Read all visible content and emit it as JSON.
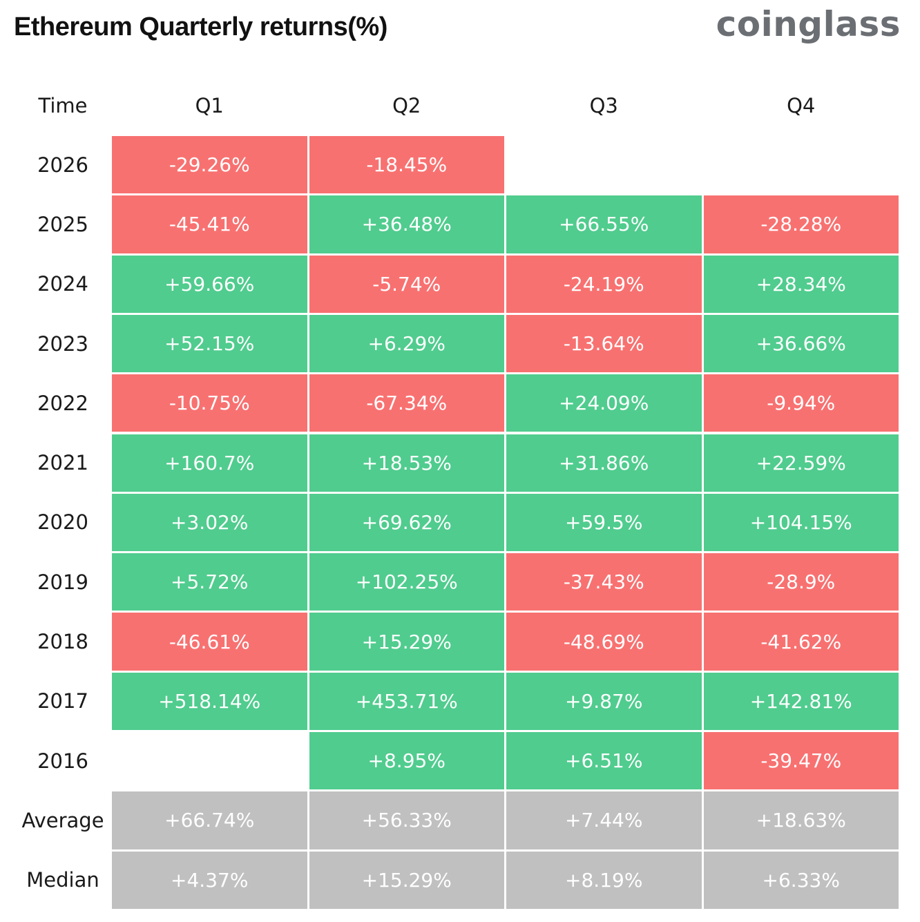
{
  "header": {
    "title": "Ethereum Quarterly returns(%)",
    "brand": "coinglass"
  },
  "colors": {
    "positive": "#50cc8e",
    "negative": "#f87171",
    "summary": "#c0c0c0",
    "cell_text": "#ffffff"
  },
  "chart_data": {
    "type": "table",
    "title": "Ethereum Quarterly returns(%)",
    "columns": [
      "Time",
      "Q1",
      "Q2",
      "Q3",
      "Q4"
    ],
    "rows": [
      {
        "label": "2026",
        "values": [
          "-29.26%",
          "-18.45%",
          "",
          ""
        ]
      },
      {
        "label": "2025",
        "values": [
          "-45.41%",
          "+36.48%",
          "+66.55%",
          "-28.28%"
        ]
      },
      {
        "label": "2024",
        "values": [
          "+59.66%",
          "-5.74%",
          "-24.19%",
          "+28.34%"
        ]
      },
      {
        "label": "2023",
        "values": [
          "+52.15%",
          "+6.29%",
          "-13.64%",
          "+36.66%"
        ]
      },
      {
        "label": "2022",
        "values": [
          "-10.75%",
          "-67.34%",
          "+24.09%",
          "-9.94%"
        ]
      },
      {
        "label": "2021",
        "values": [
          "+160.7%",
          "+18.53%",
          "+31.86%",
          "+22.59%"
        ]
      },
      {
        "label": "2020",
        "values": [
          "+3.02%",
          "+69.62%",
          "+59.5%",
          "+104.15%"
        ]
      },
      {
        "label": "2019",
        "values": [
          "+5.72%",
          "+102.25%",
          "-37.43%",
          "-28.9%"
        ]
      },
      {
        "label": "2018",
        "values": [
          "-46.61%",
          "+15.29%",
          "-48.69%",
          "-41.62%"
        ]
      },
      {
        "label": "2017",
        "values": [
          "+518.14%",
          "+453.71%",
          "+9.87%",
          "+142.81%"
        ]
      },
      {
        "label": "2016",
        "values": [
          "",
          "+8.95%",
          "+6.51%",
          "-39.47%"
        ]
      }
    ],
    "summary_rows": [
      {
        "label": "Average",
        "values": [
          "+66.74%",
          "+56.33%",
          "+7.44%",
          "+18.63%"
        ]
      },
      {
        "label": "Median",
        "values": [
          "+4.37%",
          "+15.29%",
          "+8.19%",
          "+6.33%"
        ]
      }
    ]
  }
}
